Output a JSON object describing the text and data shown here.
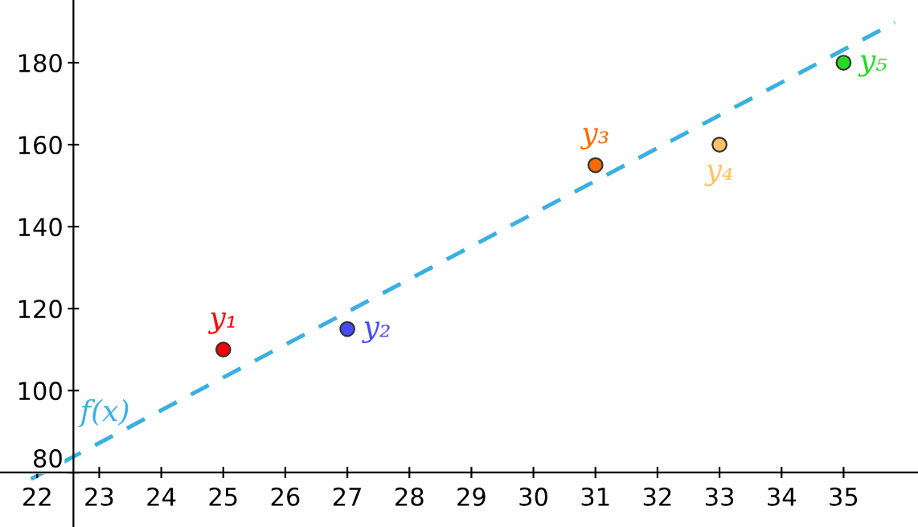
{
  "chart_data": {
    "type": "scatter",
    "xlim": [
      21.4,
      36.2
    ],
    "ylim": [
      66.7,
      195.3
    ],
    "xticks": [
      22,
      23,
      24,
      25,
      26,
      27,
      28,
      29,
      30,
      31,
      32,
      33,
      34,
      35
    ],
    "yticks": [
      80,
      100,
      120,
      140,
      160,
      180
    ],
    "grid": false,
    "marker": "circle",
    "series": [
      {
        "name": "f(x)",
        "type": "line",
        "marker": "none",
        "line_style": "dashed",
        "color": "#3ab0e0",
        "x": [
          21.9,
          35.83
        ],
        "values": [
          78.4,
          189.8
        ]
      },
      {
        "name": "y₁",
        "color": "#ff0000",
        "x": [
          25
        ],
        "values": [
          110
        ]
      },
      {
        "name": "y₂",
        "color": "#4a4aff",
        "x": [
          27
        ],
        "values": [
          115
        ]
      },
      {
        "name": "y₃",
        "color": "#ff6a00",
        "x": [
          31
        ],
        "values": [
          155
        ]
      },
      {
        "name": "y₄",
        "color": "#ffc266",
        "x": [
          33
        ],
        "values": [
          160
        ]
      },
      {
        "name": "y₅",
        "color": "#22dd22",
        "x": [
          35
        ],
        "values": [
          180
        ]
      }
    ]
  }
}
